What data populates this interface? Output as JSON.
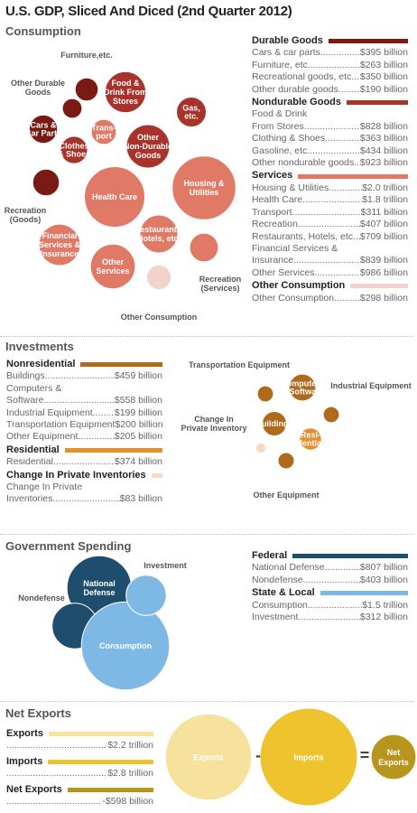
{
  "title": "U.S. GDP, Sliced And Diced (2nd Quarter 2012)",
  "colors": {
    "durable": "#7a1a14",
    "nondurable": "#a8332a",
    "services": "#e07a66",
    "other_consumption": "#f3d2cc",
    "nonresidential": "#b06a1c",
    "residential": "#e3902f",
    "inventories": "#f6dcc2",
    "federal": "#1e4d6e",
    "state_local": "#7db9e4",
    "exports": "#f6e29c",
    "imports": "#efc32d",
    "net_exports": "#b8961e"
  },
  "chart_data": [
    {
      "type": "bubble",
      "section": "Consumption",
      "unit": "billion",
      "groups": [
        {
          "name": "Durable Goods",
          "items": [
            {
              "label": "Cars & car parts",
              "value_text": "$395 billion",
              "value": 395,
              "bubble_label": "Cars & Car Parts"
            },
            {
              "label": "Furniture, etc.",
              "value_text": "$263 billion",
              "value": 263,
              "bubble_label": "Furniture,etc."
            },
            {
              "label": "Recreational goods, etc.",
              "value_text": "$350 billion",
              "value": 350,
              "bubble_label": "Recreation (Goods)"
            },
            {
              "label": "Other durable goods",
              "value_text": "$190 billion",
              "value": 190,
              "bubble_label": "Other Durable Goods"
            }
          ]
        },
        {
          "name": "Nondurable Goods",
          "items": [
            {
              "label": "Food & Drink",
              "label2": "From Stores",
              "value_text": "$828 billion",
              "value": 828,
              "bubble_label": "Food & Drink From Stores"
            },
            {
              "label": "Clothing & Shoes",
              "value_text": "$363 billion",
              "value": 363,
              "bubble_label": "Clothes & Shoes"
            },
            {
              "label": "Gasoline, etc.",
              "value_text": "$434 billion",
              "value": 434,
              "bubble_label": "Gas, etc."
            },
            {
              "label": "Other nondurable goods",
              "value_text": "$923 billion",
              "value": 923,
              "bubble_label": "Other Non-Durable Goods"
            }
          ]
        },
        {
          "name": "Services",
          "items": [
            {
              "label": "Housing & Utilities",
              "value_text": "$2.0 trillion",
              "value": 2000,
              "bubble_label": "Housing & Utilities"
            },
            {
              "label": "Health Care",
              "value_text": "$1.8 trillion",
              "value": 1800,
              "bubble_label": "Health Care"
            },
            {
              "label": "Transport",
              "value_text": "$311 billion",
              "value": 311,
              "bubble_label": "Trans- port"
            },
            {
              "label": "Recreation",
              "value_text": "$407 billion",
              "value": 407,
              "bubble_label": "Recreation (Services)"
            },
            {
              "label": "Restaurants, Hotels, etc.",
              "value_text": "$709 billion",
              "value": 709,
              "bubble_label": "Restaurants, Hotels, etc."
            },
            {
              "label": "Financial  Services &",
              "label2": "Insurance",
              "value_text": "$839 billion",
              "value": 839,
              "bubble_label": "Financial Services & Insurance"
            },
            {
              "label": "Other Services",
              "value_text": "$986 billion",
              "value": 986,
              "bubble_label": "Other Services"
            }
          ]
        },
        {
          "name": "Other Consumption",
          "items": [
            {
              "label": "Other Consumption",
              "value_text": "$298 billion",
              "value": 298,
              "bubble_label": "Other Consumption"
            }
          ]
        }
      ]
    },
    {
      "type": "bubble",
      "section": "Investments",
      "unit": "billion",
      "groups": [
        {
          "name": "Nonresidential",
          "items": [
            {
              "label": "Buildings",
              "value_text": "$459 billion",
              "value": 459,
              "bubble_label": "Buildings"
            },
            {
              "label": "Computers &",
              "label2": "Software",
              "value_text": "$558 billion",
              "value": 558,
              "bubble_label": "Computers & Software"
            },
            {
              "label": "Industrial Equipment",
              "value_text": "$199 billion",
              "value": 199,
              "bubble_label": "Industrial Equipment"
            },
            {
              "label": "Transportation Equipment",
              "value_text": "$200 billion",
              "value": 200,
              "bubble_label": "Transportation Equipment"
            },
            {
              "label": "Other Equipment",
              "value_text": "$205 billion",
              "value": 205,
              "bubble_label": "Other Equipment"
            }
          ]
        },
        {
          "name": "Residential",
          "items": [
            {
              "label": "Residential",
              "value_text": "$374 billion",
              "value": 374,
              "bubble_label": "Resi- dential"
            }
          ]
        },
        {
          "name": "Change In Private Inventories",
          "items": [
            {
              "label": "Change In Private",
              "label2": "Inventories",
              "value_text": "$83 billion",
              "value": 83,
              "bubble_label": "Change In Private Inventory"
            }
          ]
        }
      ]
    },
    {
      "type": "bubble",
      "section": "Government Spending",
      "unit": "billion",
      "groups": [
        {
          "name": "Federal",
          "items": [
            {
              "label": "National Defense",
              "value_text": "$807 billion",
              "value": 807,
              "bubble_label": "National Defense"
            },
            {
              "label": "Nondefense",
              "value_text": "$403 billion",
              "value": 403,
              "bubble_label": "Nondefense"
            }
          ]
        },
        {
          "name": "State & Local",
          "items": [
            {
              "label": "Consumption",
              "value_text": "$1.5 trillion",
              "value": 1500,
              "bubble_label": "Consumption"
            },
            {
              "label": "Investment",
              "value_text": "$312 billion",
              "value": 312,
              "bubble_label": "Investment"
            }
          ]
        }
      ]
    },
    {
      "type": "bubble",
      "section": "Net Exports",
      "unit": "billion",
      "groups": [
        {
          "name": "Exports",
          "items": [
            {
              "label": "",
              "value_text": "$2.2 trillion",
              "value": 2200,
              "bubble_label": "Exports"
            }
          ]
        },
        {
          "name": "Imports",
          "items": [
            {
              "label": "",
              "value_text": "$2.8 trillion",
              "value": 2800,
              "bubble_label": "Imports"
            }
          ]
        },
        {
          "name": "Net Exports",
          "items": [
            {
              "label": "",
              "value_text": "-$598 billion",
              "value": -598,
              "bubble_label": "Net Exports"
            }
          ]
        }
      ],
      "operators": [
        "-",
        "="
      ]
    }
  ]
}
